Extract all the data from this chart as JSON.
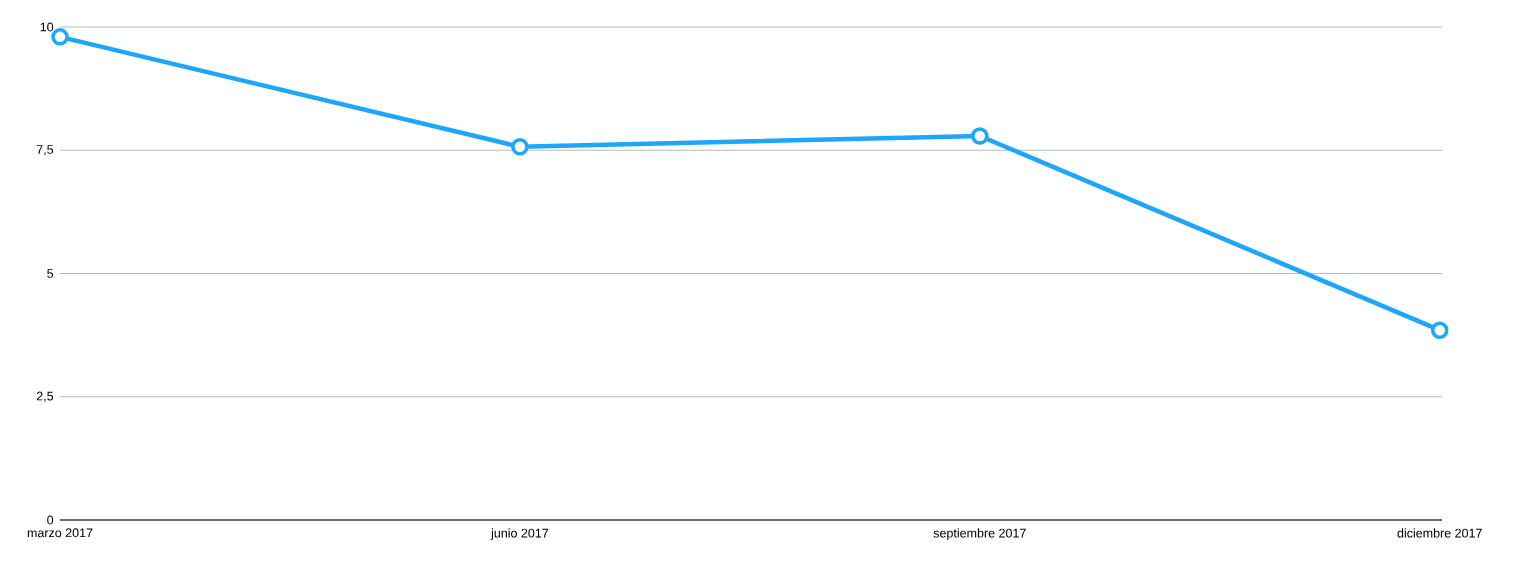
{
  "chart_data": {
    "type": "line",
    "categories": [
      "marzo 2017",
      "junio 2017",
      "septiembre 2017",
      "diciembre 2017"
    ],
    "series": [
      {
        "color": "#1ea5fc",
        "values": [
          9.8,
          7.57,
          7.79,
          3.85
        ]
      }
    ],
    "ylim": [
      0,
      10
    ],
    "yticks": [
      0,
      {
        "value": 2.5,
        "label": "2,5"
      },
      5,
      {
        "value": 7.5,
        "label": "7,5"
      },
      10
    ],
    "grid": "y",
    "marker": "circle"
  }
}
